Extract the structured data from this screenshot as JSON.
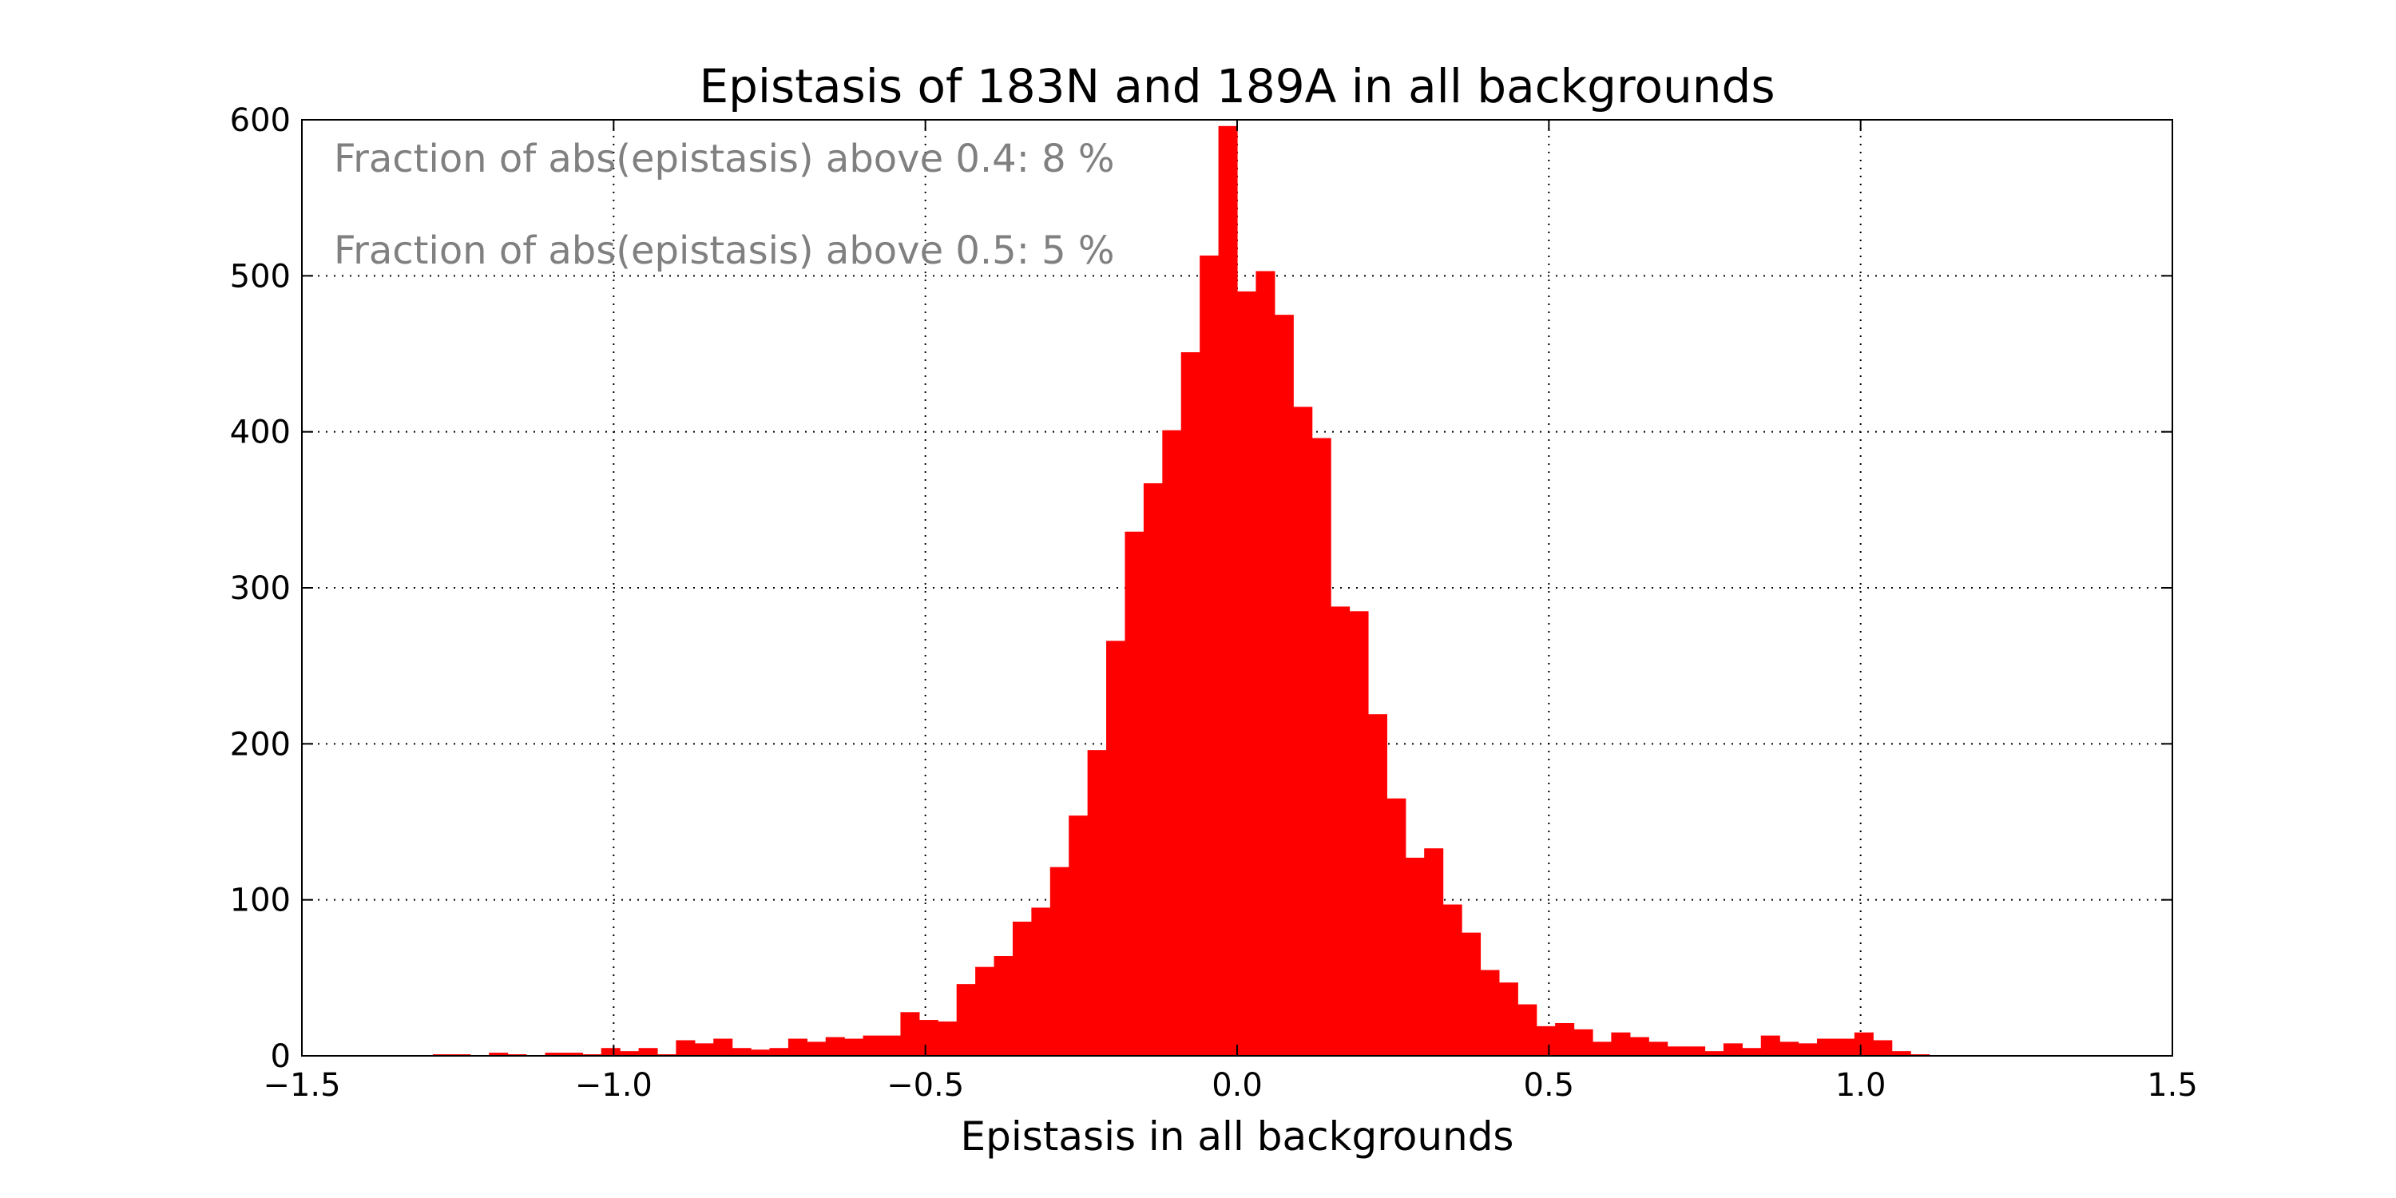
{
  "chart_data": {
    "type": "bar",
    "title": "Epistasis of 183N and 189A in all backgrounds",
    "xlabel": "Epistasis in all backgrounds",
    "ylabel": "",
    "xlim": [
      -1.5,
      1.5
    ],
    "ylim": [
      0,
      600
    ],
    "x_ticks": [
      -1.5,
      -1.0,
      -0.5,
      0.0,
      0.5,
      1.0,
      1.5
    ],
    "x_tick_labels": [
      "−1.5",
      "−1.0",
      "−0.5",
      "0.0",
      "0.5",
      "1.0",
      "1.5"
    ],
    "y_ticks": [
      0,
      100,
      200,
      300,
      400,
      500,
      600
    ],
    "y_tick_labels": [
      "0",
      "100",
      "200",
      "300",
      "400",
      "500",
      "600"
    ],
    "grid": true,
    "bar_color": "#ff0000",
    "annotations": [
      "Fraction of abs(epistasis) above 0.4: 8 %",
      "Fraction of abs(epistasis) above 0.5: 5 %"
    ],
    "bin_width": 0.03,
    "bins": [
      {
        "x": -1.29,
        "y": 1
      },
      {
        "x": -1.26,
        "y": 1
      },
      {
        "x": -1.2,
        "y": 2
      },
      {
        "x": -1.17,
        "y": 1
      },
      {
        "x": -1.11,
        "y": 2
      },
      {
        "x": -1.08,
        "y": 2
      },
      {
        "x": -1.05,
        "y": 1
      },
      {
        "x": -1.02,
        "y": 5
      },
      {
        "x": -0.99,
        "y": 3
      },
      {
        "x": -0.96,
        "y": 5
      },
      {
        "x": -0.93,
        "y": 1
      },
      {
        "x": -0.9,
        "y": 10
      },
      {
        "x": -0.87,
        "y": 8
      },
      {
        "x": -0.84,
        "y": 11
      },
      {
        "x": -0.81,
        "y": 5
      },
      {
        "x": -0.78,
        "y": 4
      },
      {
        "x": -0.75,
        "y": 5
      },
      {
        "x": -0.72,
        "y": 11
      },
      {
        "x": -0.69,
        "y": 9
      },
      {
        "x": -0.66,
        "y": 12
      },
      {
        "x": -0.63,
        "y": 11
      },
      {
        "x": -0.6,
        "y": 13
      },
      {
        "x": -0.57,
        "y": 13
      },
      {
        "x": -0.54,
        "y": 28
      },
      {
        "x": -0.51,
        "y": 23
      },
      {
        "x": -0.48,
        "y": 22
      },
      {
        "x": -0.45,
        "y": 46
      },
      {
        "x": -0.42,
        "y": 57
      },
      {
        "x": -0.39,
        "y": 64
      },
      {
        "x": -0.36,
        "y": 86
      },
      {
        "x": -0.33,
        "y": 95
      },
      {
        "x": -0.3,
        "y": 121
      },
      {
        "x": -0.27,
        "y": 154
      },
      {
        "x": -0.24,
        "y": 196
      },
      {
        "x": -0.21,
        "y": 266
      },
      {
        "x": -0.18,
        "y": 336
      },
      {
        "x": -0.15,
        "y": 367
      },
      {
        "x": -0.12,
        "y": 401
      },
      {
        "x": -0.09,
        "y": 451
      },
      {
        "x": -0.06,
        "y": 513
      },
      {
        "x": -0.03,
        "y": 596
      },
      {
        "x": 0.0,
        "y": 490
      },
      {
        "x": 0.03,
        "y": 503
      },
      {
        "x": 0.06,
        "y": 475
      },
      {
        "x": 0.09,
        "y": 416
      },
      {
        "x": 0.12,
        "y": 396
      },
      {
        "x": 0.15,
        "y": 288
      },
      {
        "x": 0.18,
        "y": 285
      },
      {
        "x": 0.21,
        "y": 219
      },
      {
        "x": 0.24,
        "y": 165
      },
      {
        "x": 0.27,
        "y": 127
      },
      {
        "x": 0.3,
        "y": 133
      },
      {
        "x": 0.33,
        "y": 97
      },
      {
        "x": 0.36,
        "y": 79
      },
      {
        "x": 0.39,
        "y": 55
      },
      {
        "x": 0.42,
        "y": 47
      },
      {
        "x": 0.45,
        "y": 33
      },
      {
        "x": 0.48,
        "y": 19
      },
      {
        "x": 0.51,
        "y": 21
      },
      {
        "x": 0.54,
        "y": 17
      },
      {
        "x": 0.57,
        "y": 9
      },
      {
        "x": 0.6,
        "y": 15
      },
      {
        "x": 0.63,
        "y": 12
      },
      {
        "x": 0.66,
        "y": 9
      },
      {
        "x": 0.69,
        "y": 6
      },
      {
        "x": 0.72,
        "y": 6
      },
      {
        "x": 0.75,
        "y": 3
      },
      {
        "x": 0.78,
        "y": 8
      },
      {
        "x": 0.81,
        "y": 5
      },
      {
        "x": 0.84,
        "y": 13
      },
      {
        "x": 0.87,
        "y": 9
      },
      {
        "x": 0.9,
        "y": 8
      },
      {
        "x": 0.93,
        "y": 11
      },
      {
        "x": 0.96,
        "y": 11
      },
      {
        "x": 0.99,
        "y": 15
      },
      {
        "x": 1.02,
        "y": 10
      },
      {
        "x": 1.05,
        "y": 3
      },
      {
        "x": 1.08,
        "y": 1
      }
    ]
  }
}
